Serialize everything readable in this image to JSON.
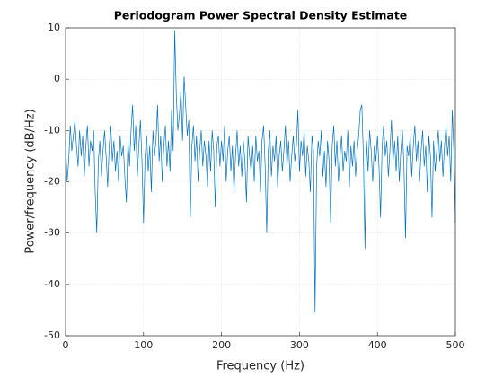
{
  "chart_data": {
    "type": "line",
    "title": "Periodogram Power Spectral Density Estimate",
    "xlabel": "Frequency (Hz)",
    "ylabel": "Power/frequency (dB/Hz)",
    "xlim": [
      0,
      500
    ],
    "ylim": [
      -50,
      10
    ],
    "xticks": [
      0,
      100,
      200,
      300,
      400,
      500
    ],
    "yticks": [
      -50,
      -40,
      -30,
      -20,
      -10,
      0,
      10
    ],
    "grid": true,
    "x": [
      0,
      2,
      4,
      6,
      8,
      10,
      12,
      14,
      16,
      18,
      20,
      22,
      24,
      26,
      28,
      30,
      32,
      34,
      36,
      38,
      40,
      42,
      44,
      46,
      48,
      50,
      52,
      54,
      56,
      58,
      60,
      62,
      64,
      66,
      68,
      70,
      72,
      74,
      76,
      78,
      80,
      82,
      84,
      86,
      88,
      90,
      92,
      94,
      96,
      98,
      100,
      102,
      104,
      106,
      108,
      110,
      112,
      114,
      116,
      118,
      120,
      122,
      124,
      126,
      128,
      130,
      132,
      134,
      136,
      138,
      140,
      142,
      144,
      146,
      148,
      150,
      152,
      154,
      156,
      158,
      160,
      162,
      164,
      166,
      168,
      170,
      172,
      174,
      176,
      178,
      180,
      182,
      184,
      186,
      188,
      190,
      192,
      194,
      196,
      198,
      200,
      202,
      204,
      206,
      208,
      210,
      212,
      214,
      216,
      218,
      220,
      222,
      224,
      226,
      228,
      230,
      232,
      234,
      236,
      238,
      240,
      242,
      244,
      246,
      248,
      250,
      252,
      254,
      256,
      258,
      260,
      262,
      264,
      266,
      268,
      270,
      272,
      274,
      276,
      278,
      280,
      282,
      284,
      286,
      288,
      290,
      292,
      294,
      296,
      298,
      300,
      302,
      304,
      306,
      308,
      310,
      312,
      314,
      316,
      318,
      320,
      322,
      324,
      326,
      328,
      330,
      332,
      334,
      336,
      338,
      340,
      342,
      344,
      346,
      348,
      350,
      352,
      354,
      356,
      358,
      360,
      362,
      364,
      366,
      368,
      370,
      372,
      374,
      376,
      378,
      380,
      382,
      384,
      386,
      388,
      390,
      392,
      394,
      396,
      398,
      400,
      402,
      404,
      406,
      408,
      410,
      412,
      414,
      416,
      418,
      420,
      422,
      424,
      426,
      428,
      430,
      432,
      434,
      436,
      438,
      440,
      442,
      444,
      446,
      448,
      450,
      452,
      454,
      456,
      458,
      460,
      462,
      464,
      466,
      468,
      470,
      472,
      474,
      476,
      478,
      480,
      482,
      484,
      486,
      488,
      490,
      492,
      494,
      496,
      498,
      500
    ],
    "series": [
      {
        "color": "#0072bd",
        "values": [
          -12,
          -20,
          -16,
          -9,
          -14,
          -11,
          -8,
          -13,
          -17,
          -10,
          -15,
          -11,
          -19,
          -13,
          -9,
          -17,
          -12,
          -14,
          -10,
          -22,
          -30,
          -16,
          -12,
          -19,
          -14,
          -10,
          -15,
          -21,
          -13,
          -9,
          -16,
          -12,
          -18,
          -14,
          -20,
          -11,
          -15,
          -13,
          -19,
          -24,
          -12,
          -17,
          -10,
          -5,
          -14,
          -9,
          -19,
          -13,
          -8,
          -16,
          -28,
          -15,
          -11,
          -18,
          -13,
          -22,
          -10,
          -15,
          -12,
          -5,
          -16,
          -11,
          -20,
          -13,
          -9,
          -17,
          -12,
          -18,
          -6,
          -14,
          9.5,
          -3,
          -10,
          -7,
          -2,
          -12,
          0.5,
          -5,
          -11,
          -8,
          -27,
          -13,
          -9,
          -16,
          -11,
          -20,
          -14,
          -10,
          -17,
          -12,
          -15,
          -21,
          -12,
          -18,
          -10,
          -14,
          -25,
          -13,
          -11,
          -17,
          -12,
          -16,
          -9,
          -20,
          -14,
          -11,
          -18,
          -13,
          -22,
          -15,
          -10,
          -17,
          -13,
          -19,
          -12,
          -16,
          -24,
          -11,
          -15,
          -18,
          -13,
          -20,
          -11,
          -16,
          -14,
          -22,
          -12,
          -9,
          -17,
          -30,
          -14,
          -10,
          -19,
          -13,
          -16,
          -11,
          -21,
          -15,
          -12,
          -18,
          -14,
          -9,
          -17,
          -12,
          -20,
          -15,
          -11,
          -16,
          -13,
          -6,
          -18,
          -12,
          -15,
          -10,
          -19,
          -13,
          -16,
          -22,
          -11,
          -14,
          -45.5,
          -17,
          -12,
          -15,
          -10,
          -19,
          -14,
          -21,
          -12,
          -16,
          -28,
          -13,
          -9,
          -17,
          -12,
          -20,
          -15,
          -11,
          -18,
          -14,
          -16,
          -10,
          -21,
          -13,
          -17,
          -12,
          -19,
          -14,
          -11,
          -6,
          -5,
          -15,
          -33,
          -12,
          -18,
          -10,
          -14,
          -20,
          -13,
          -16,
          -11,
          -17,
          -27,
          -13,
          -9,
          -15,
          -12,
          -19,
          -14,
          -8,
          -16,
          -12,
          -18,
          -11,
          -20,
          -14,
          -10,
          -17,
          -31,
          -13,
          -15,
          -11,
          -19,
          -13,
          -9,
          -16,
          -12,
          -20,
          -14,
          -10,
          -17,
          -13,
          -22,
          -11,
          -15,
          -27,
          -12,
          -18,
          -14,
          -10,
          -16,
          -12,
          -19,
          -13,
          -9,
          -15,
          -11,
          -20,
          -6,
          -14,
          -28
        ]
      }
    ]
  }
}
